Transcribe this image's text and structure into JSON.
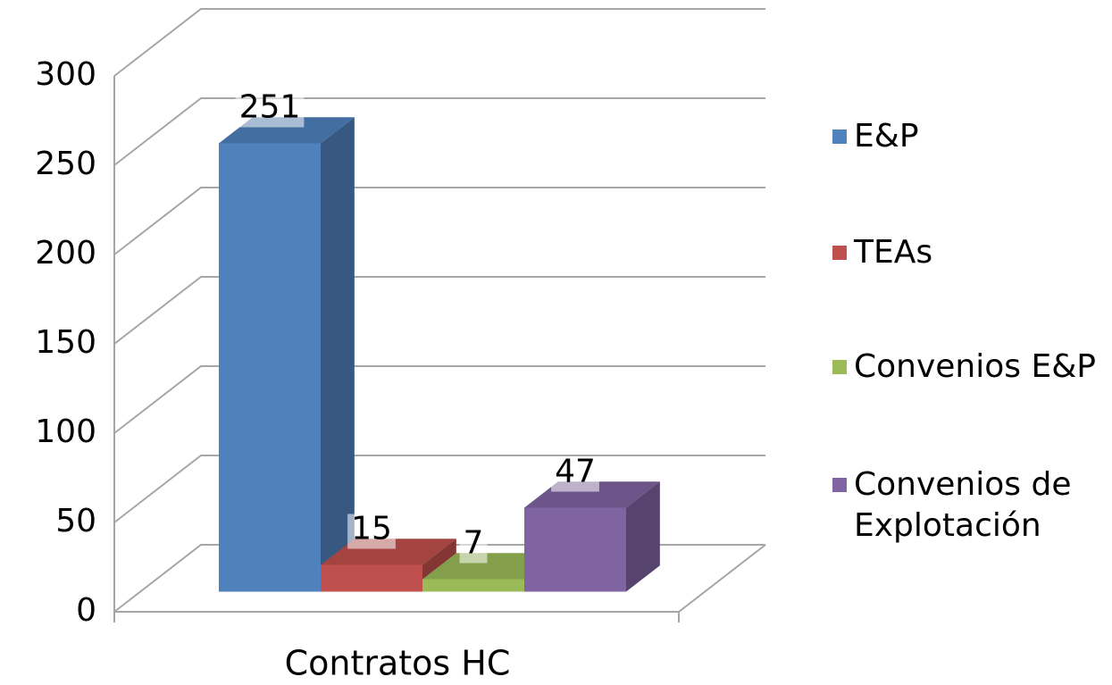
{
  "chart_data": {
    "type": "bar3d",
    "categories": [
      "Contratos HC"
    ],
    "series": [
      {
        "name": "E&P",
        "color": "#4f81bd",
        "values": [
          251
        ]
      },
      {
        "name": "TEAs",
        "color": "#c0504d",
        "values": [
          15
        ]
      },
      {
        "name": "Convenios E&P",
        "color": "#9bbb59",
        "values": [
          7
        ]
      },
      {
        "name": "Convenios de Explotación",
        "color": "#8064a2",
        "values": [
          47
        ]
      }
    ],
    "ylim": [
      0,
      300
    ],
    "yticks": [
      0,
      50,
      100,
      150,
      200,
      250,
      300
    ],
    "grid": true,
    "legend": "right"
  }
}
